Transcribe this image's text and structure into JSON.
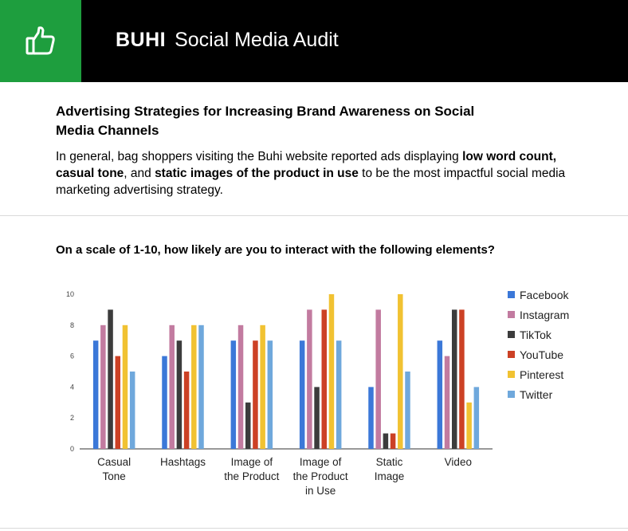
{
  "header": {
    "brand_bold": "BUHI",
    "brand_title": "Social Media Audit",
    "logo_icon": "thumbs-up-icon",
    "accent_color": "#1e9e3e"
  },
  "section": {
    "title": "Advertising Strategies for Increasing Brand Awareness on Social Media Channels",
    "intro": [
      {
        "text": "In general, bag shoppers visiting the Buhi website reported ads displaying ",
        "bold": false
      },
      {
        "text": "low word count, casual tone",
        "bold": true
      },
      {
        "text": ", and ",
        "bold": false
      },
      {
        "text": "static images of the product in use",
        "bold": true
      },
      {
        "text": " to be the most impactful social media marketing advertising strategy.",
        "bold": false
      }
    ]
  },
  "question": "On a scale of 1-10, how likely are you to interact with the following elements?",
  "chart_data": {
    "type": "bar",
    "categories": [
      [
        "Casual",
        "Tone"
      ],
      [
        "Hashtags"
      ],
      [
        "Image of",
        "the Product"
      ],
      [
        "Image of",
        "the Product",
        "in Use"
      ],
      [
        "Static",
        "Image"
      ],
      [
        "Video"
      ]
    ],
    "series": [
      {
        "name": "Facebook",
        "color": "#3b78d8",
        "values": [
          7,
          6,
          7,
          7,
          4,
          7
        ]
      },
      {
        "name": "Instagram",
        "color": "#c27ba0",
        "values": [
          8,
          8,
          8,
          9,
          9,
          6
        ]
      },
      {
        "name": "TikTok",
        "color": "#3c3c3c",
        "values": [
          9,
          7,
          3,
          4,
          1,
          9
        ]
      },
      {
        "name": "YouTube",
        "color": "#cc4125",
        "values": [
          6,
          5,
          7,
          9,
          1,
          9
        ]
      },
      {
        "name": "Pinterest",
        "color": "#f1c232",
        "values": [
          8,
          8,
          8,
          10,
          10,
          3
        ]
      },
      {
        "name": "Twitter",
        "color": "#6fa8dc",
        "values": [
          5,
          8,
          7,
          7,
          5,
          4
        ]
      }
    ],
    "yticks": [
      0,
      2,
      4,
      6,
      8,
      10
    ],
    "ylim": [
      0,
      10
    ],
    "grid": false,
    "legend": "right"
  }
}
